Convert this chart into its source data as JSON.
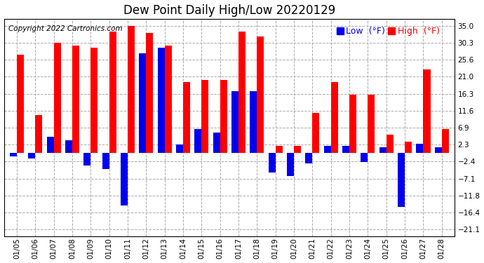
{
  "title": "Dew Point Daily High/Low 20220129",
  "copyright": "Copyright 2022 Cartronics.com",
  "dates": [
    "01/05",
    "01/06",
    "01/07",
    "01/08",
    "01/09",
    "01/10",
    "01/11",
    "01/12",
    "01/13",
    "01/14",
    "01/15",
    "01/16",
    "01/17",
    "01/18",
    "01/19",
    "01/20",
    "01/21",
    "01/22",
    "01/23",
    "01/24",
    "01/25",
    "01/26",
    "01/27",
    "01/28"
  ],
  "high_values": [
    27.0,
    10.5,
    30.3,
    29.5,
    29.0,
    33.5,
    35.0,
    33.0,
    29.5,
    19.5,
    20.0,
    20.0,
    33.5,
    32.0,
    2.0,
    2.0,
    11.0,
    19.5,
    16.0,
    16.0,
    5.0,
    3.0,
    23.0,
    6.5
  ],
  "low_values": [
    -1.0,
    -1.5,
    4.5,
    3.5,
    -3.5,
    -4.5,
    -14.5,
    27.5,
    29.0,
    2.3,
    6.5,
    5.5,
    17.0,
    17.0,
    -5.5,
    -6.5,
    -3.0,
    2.0,
    2.0,
    -2.5,
    1.5,
    -15.0,
    2.5,
    1.5
  ],
  "yticks": [
    35.0,
    30.3,
    25.6,
    21.0,
    16.3,
    11.6,
    6.9,
    2.3,
    -2.4,
    -7.1,
    -11.8,
    -16.4,
    -21.1
  ],
  "ylim": [
    -23,
    37
  ],
  "bar_width": 0.38,
  "high_color": "#FF0000",
  "low_color": "#0000EE",
  "bg_color": "#FFFFFF",
  "grid_color": "#AAAAAA",
  "title_fontsize": 12,
  "tick_fontsize": 7.5,
  "legend_fontsize": 9,
  "copyright_fontsize": 7.5
}
